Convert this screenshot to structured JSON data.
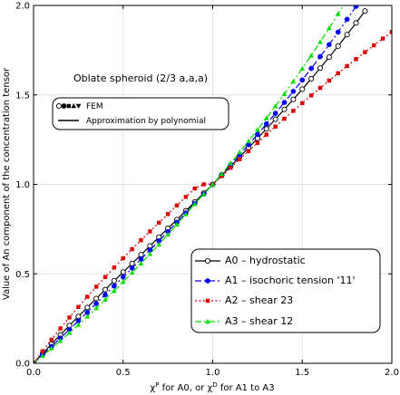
{
  "chart_data": {
    "type": "line",
    "title": "",
    "annotation": "Oblate spheroid (2/3 a,a,a)",
    "xlabel_parts": [
      "χ",
      "P",
      " for A0, or ",
      "χ",
      "D",
      " for A1 to A3"
    ],
    "ylabel": "Value of An component of the concentration tensor",
    "xlim": [
      0.0,
      2.0
    ],
    "ylim": [
      0.0,
      2.0
    ],
    "xticks": [
      "0.0",
      "0.5",
      "1.0",
      "1.5",
      "2.0"
    ],
    "yticks": [
      "0.0",
      "0.5",
      "1.0",
      "1.5",
      "2.0"
    ],
    "grid": true,
    "legend_top": {
      "position": "upper-left",
      "entries": [
        {
          "label": "FEM",
          "style": "markers"
        },
        {
          "label": "Approximation by polynomial",
          "style": "solid-line"
        }
      ]
    },
    "legend": {
      "position": "lower-right",
      "entries": [
        {
          "label": "A0 – hydrostatic",
          "color": "#000000",
          "marker": "circle-open",
          "dash": "solid"
        },
        {
          "label": "A1 – isochoric tension '11'",
          "color": "#0000ff",
          "marker": "circle",
          "dash": "dashdot"
        },
        {
          "label": "A2 – shear 23",
          "color": "#dd0000",
          "marker": "square",
          "dash": "dotted"
        },
        {
          "label": "A3 – shear 12",
          "color": "#00dd00",
          "marker": "triangle-up",
          "dash": "dashdot"
        }
      ]
    },
    "series": [
      {
        "name": "A0 – hydrostatic",
        "color": "#000000",
        "marker": "circle-open",
        "x": [
          0.0,
          0.05,
          0.1,
          0.15,
          0.2,
          0.25,
          0.3,
          0.35,
          0.4,
          0.45,
          0.5,
          0.55,
          0.6,
          0.65,
          0.7,
          0.75,
          0.8,
          0.85,
          0.9,
          0.95,
          1.0,
          1.05,
          1.1,
          1.15,
          1.2,
          1.25,
          1.3,
          1.35,
          1.4,
          1.45,
          1.5,
          1.55,
          1.6,
          1.65,
          1.7,
          1.75,
          1.8,
          1.85
        ],
        "y": [
          0.0,
          0.054,
          0.107,
          0.159,
          0.211,
          0.262,
          0.312,
          0.362,
          0.412,
          0.461,
          0.51,
          0.558,
          0.607,
          0.656,
          0.705,
          0.754,
          0.803,
          0.852,
          0.901,
          0.951,
          1.0,
          1.05,
          1.101,
          1.152,
          1.204,
          1.257,
          1.31,
          1.364,
          1.419,
          1.475,
          1.532,
          1.59,
          1.65,
          1.711,
          1.773,
          1.837,
          1.902,
          1.969
        ]
      },
      {
        "name": "A1 – isochoric tension '11'",
        "color": "#0000ff",
        "marker": "circle",
        "x": [
          0.0,
          0.05,
          0.1,
          0.15,
          0.2,
          0.25,
          0.3,
          0.35,
          0.4,
          0.45,
          0.5,
          0.55,
          0.6,
          0.65,
          0.7,
          0.75,
          0.8,
          0.85,
          0.9,
          0.95,
          1.0,
          1.05,
          1.1,
          1.15,
          1.2,
          1.25,
          1.3,
          1.35,
          1.4,
          1.45,
          1.5,
          1.55,
          1.6,
          1.65,
          1.7,
          1.75,
          1.8,
          1.85
        ],
        "y": [
          0.0,
          0.047,
          0.094,
          0.141,
          0.189,
          0.237,
          0.285,
          0.334,
          0.383,
          0.432,
          0.482,
          0.532,
          0.582,
          0.633,
          0.684,
          0.736,
          0.788,
          0.84,
          0.893,
          0.946,
          1.0,
          1.054,
          1.109,
          1.165,
          1.222,
          1.279,
          1.338,
          1.397,
          1.458,
          1.52,
          1.583,
          1.648,
          1.714,
          1.781,
          1.851,
          1.922,
          1.995,
          2.07
        ]
      },
      {
        "name": "A2 – shear 23",
        "color": "#dd0000",
        "marker": "square",
        "x": [
          0.0,
          0.05,
          0.1,
          0.15,
          0.2,
          0.25,
          0.3,
          0.35,
          0.4,
          0.45,
          0.5,
          0.55,
          0.6,
          0.65,
          0.7,
          0.75,
          0.8,
          0.85,
          0.9,
          0.95,
          1.0,
          1.05,
          1.1,
          1.15,
          1.2,
          1.25,
          1.3,
          1.35,
          1.4,
          1.45,
          1.5,
          1.55,
          1.6,
          1.65,
          1.7,
          1.75,
          1.8,
          1.85,
          1.9,
          1.95,
          2.0
        ],
        "y": [
          0.0,
          0.067,
          0.132,
          0.195,
          0.256,
          0.315,
          0.372,
          0.428,
          0.482,
          0.535,
          0.587,
          0.638,
          0.688,
          0.737,
          0.786,
          0.834,
          0.882,
          0.93,
          0.977,
          1.0,
          1.0,
          1.046,
          1.093,
          1.14,
          1.186,
          1.232,
          1.278,
          1.323,
          1.367,
          1.411,
          1.454,
          1.497,
          1.539,
          1.58,
          1.621,
          1.661,
          1.7,
          1.739,
          1.777,
          1.815,
          1.852
        ]
      },
      {
        "name": "A3 – shear 12",
        "color": "#00dd00",
        "marker": "triangle-up",
        "x": [
          0.0,
          0.05,
          0.1,
          0.15,
          0.2,
          0.25,
          0.3,
          0.35,
          0.4,
          0.45,
          0.5,
          0.55,
          0.6,
          0.65,
          0.7,
          0.75,
          0.8,
          0.85,
          0.9,
          0.95,
          1.0,
          1.05,
          1.1,
          1.15,
          1.2,
          1.25,
          1.3,
          1.35,
          1.4,
          1.45,
          1.5,
          1.55,
          1.6,
          1.65,
          1.7,
          1.75,
          1.8
        ],
        "y": [
          0.0,
          0.041,
          0.083,
          0.126,
          0.17,
          0.215,
          0.261,
          0.308,
          0.356,
          0.405,
          0.455,
          0.506,
          0.558,
          0.611,
          0.665,
          0.72,
          0.776,
          0.833,
          0.891,
          0.945,
          1.0,
          1.058,
          1.118,
          1.179,
          1.241,
          1.305,
          1.37,
          1.437,
          1.505,
          1.575,
          1.647,
          1.72,
          1.796,
          1.873,
          1.952,
          2.033,
          2.116
        ]
      }
    ]
  }
}
